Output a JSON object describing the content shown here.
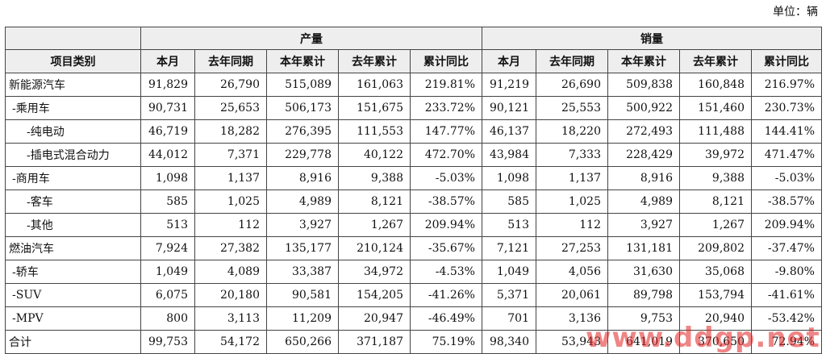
{
  "unit_label": "单位：辆",
  "group_headers": {
    "production": "产量",
    "sales": "销量"
  },
  "columns": [
    "项目类别",
    "本月",
    "去年同期",
    "本年累计",
    "去年累计",
    "累计同比",
    "本月",
    "去年同期",
    "本年累计",
    "去年累计",
    "累计同比"
  ],
  "rows": [
    {
      "level": 0,
      "cells": [
        "新能源汽车",
        "91,829",
        "26,790",
        "515,089",
        "161,063",
        "219.81%",
        "91,219",
        "26,690",
        "509,838",
        "160,848",
        "216.97%"
      ]
    },
    {
      "level": 1,
      "cells": [
        "-乘用车",
        "90,731",
        "25,653",
        "506,173",
        "151,675",
        "233.72%",
        "90,121",
        "25,553",
        "500,922",
        "151,460",
        "230.73%"
      ]
    },
    {
      "level": 2,
      "cells": [
        "-纯电动",
        "46,719",
        "18,282",
        "276,395",
        "111,553",
        "147.77%",
        "46,137",
        "18,220",
        "272,493",
        "111,488",
        "144.41%"
      ]
    },
    {
      "level": 2,
      "cells": [
        "-插电式混合动力",
        "44,012",
        "7,371",
        "229,778",
        "40,122",
        "472.70%",
        "43,984",
        "7,333",
        "228,429",
        "39,972",
        "471.47%"
      ]
    },
    {
      "level": 1,
      "cells": [
        "-商用车",
        "1,098",
        "1,137",
        "8,916",
        "9,388",
        "-5.03%",
        "1,098",
        "1,137",
        "8,916",
        "9,388",
        "-5.03%"
      ]
    },
    {
      "level": 2,
      "cells": [
        "-客车",
        "585",
        "1,025",
        "4,989",
        "8,121",
        "-38.57%",
        "585",
        "1,025",
        "4,989",
        "8,121",
        "-38.57%"
      ]
    },
    {
      "level": 2,
      "cells": [
        "-其他",
        "513",
        "112",
        "3,927",
        "1,267",
        "209.94%",
        "513",
        "112",
        "3,927",
        "1,267",
        "209.94%"
      ]
    },
    {
      "level": 0,
      "cells": [
        "燃油汽车",
        "7,924",
        "27,382",
        "135,177",
        "210,124",
        "-35.67%",
        "7,121",
        "27,253",
        "131,181",
        "209,802",
        "-37.47%"
      ]
    },
    {
      "level": 1,
      "cells": [
        "-轿车",
        "1,049",
        "4,089",
        "33,387",
        "34,972",
        "-4.53%",
        "1,049",
        "4,056",
        "31,630",
        "35,068",
        "-9.80%"
      ]
    },
    {
      "level": 1,
      "cells": [
        "-SUV",
        "6,075",
        "20,180",
        "90,581",
        "154,205",
        "-41.26%",
        "5,371",
        "20,061",
        "89,798",
        "153,794",
        "-41.61%"
      ]
    },
    {
      "level": 1,
      "cells": [
        "-MPV",
        "800",
        "3,113",
        "11,209",
        "20,947",
        "-46.49%",
        "701",
        "3,136",
        "9,753",
        "20,940",
        "-53.42%"
      ]
    },
    {
      "level": 0,
      "cells": [
        "合计",
        "99,753",
        "54,172",
        "650,266",
        "371,187",
        "75.19%",
        "98,340",
        "53,943",
        "641,019",
        "370,650",
        "72.94%"
      ]
    }
  ],
  "watermark": "www.ddgp.net"
}
